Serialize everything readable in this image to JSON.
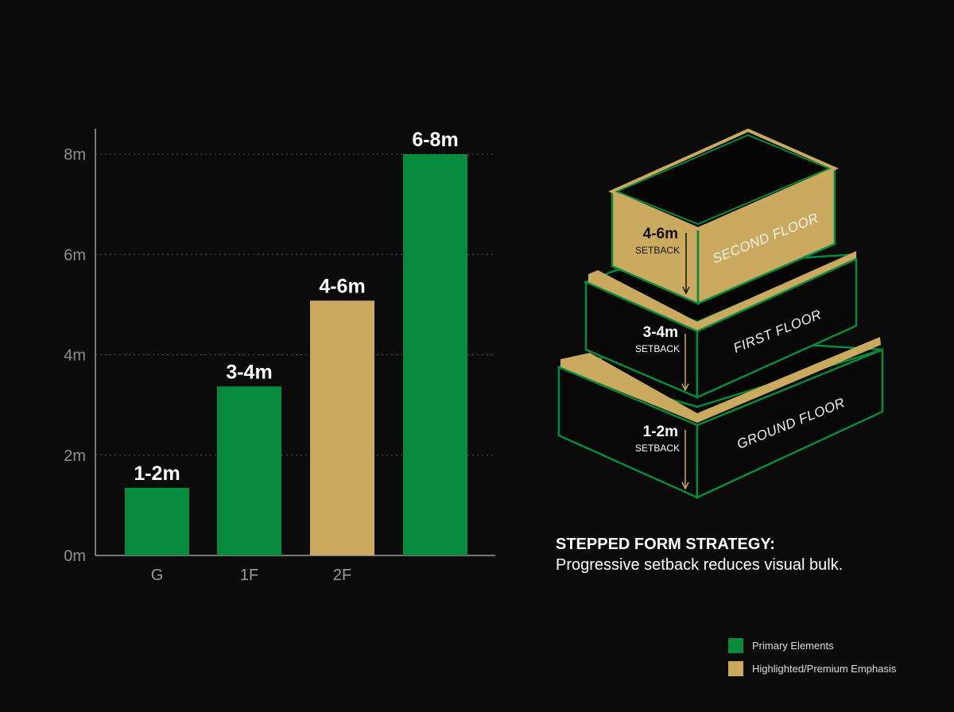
{
  "colors": {
    "primary": "#068a3e",
    "highlight": "#c9aa5e",
    "background": "#0b0b0b"
  },
  "chart_data": {
    "type": "bar",
    "categories": [
      "G",
      "1F",
      "2F",
      ""
    ],
    "values": [
      1.35,
      3.37,
      5.08,
      8.0
    ],
    "data_labels": [
      "1-2m",
      "3-4m",
      "4-6m",
      "6-8m"
    ],
    "highlighted": [
      false,
      false,
      true,
      false
    ],
    "ylim": [
      0,
      8
    ],
    "yticks": [
      0,
      2,
      4,
      6,
      8
    ],
    "ytick_labels": [
      "0m",
      "2m",
      "4m",
      "6m",
      "8m"
    ],
    "grid": true,
    "xlabel": "",
    "ylabel": "",
    "title": ""
  },
  "diagram": {
    "floors": [
      {
        "name": "SECOND FLOOR",
        "setback": "4-6m",
        "setback_label": "SETBACK"
      },
      {
        "name": "FIRST FLOOR",
        "setback": "3-4m",
        "setback_label": "SETBACK"
      },
      {
        "name": "GROUND FLOOR",
        "setback": "1-2m",
        "setback_label": "SETBACK"
      }
    ]
  },
  "caption": {
    "title": "STEPPED FORM STRATEGY:",
    "text": "Progressive setback reduces visual bulk."
  },
  "legend": [
    {
      "label": "Primary Elements",
      "color": "#068a3e"
    },
    {
      "label": "Highlighted/Premium Emphasis",
      "color": "#c9aa5e"
    }
  ]
}
